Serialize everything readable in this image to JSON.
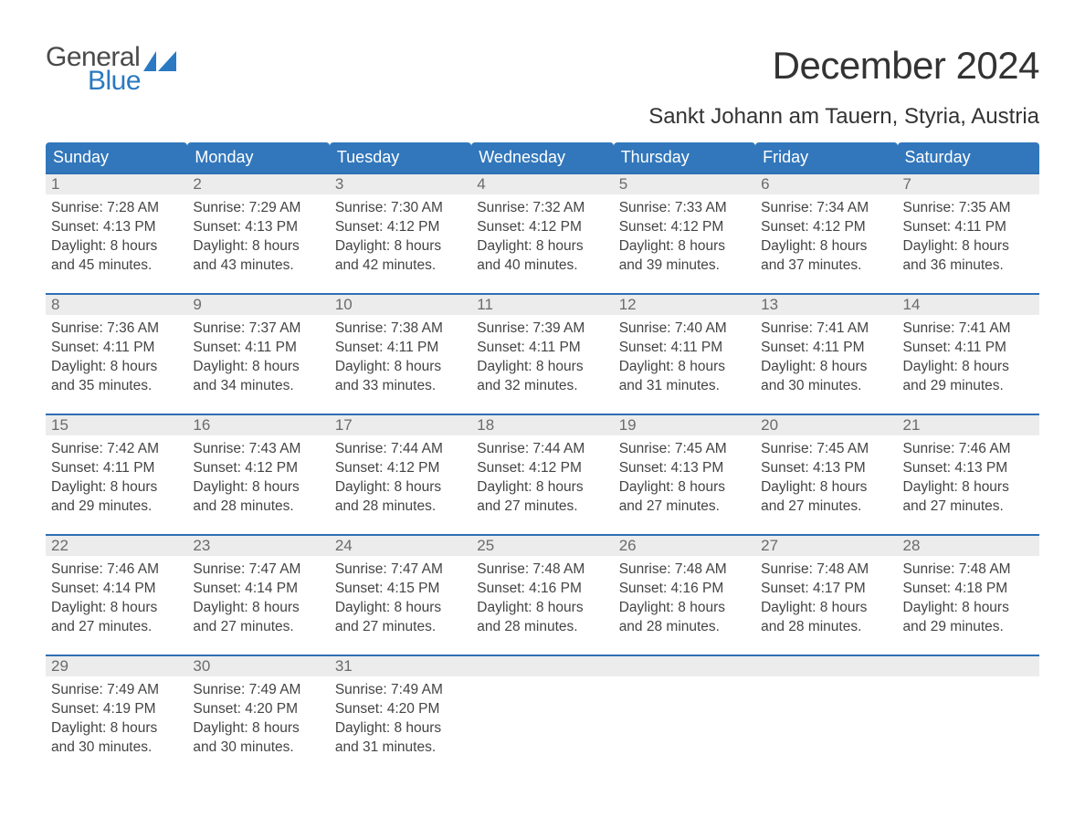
{
  "brand": {
    "word1": "General",
    "word2": "Blue",
    "icon_color": "#2b79c2"
  },
  "header": {
    "title": "December 2024",
    "location": "Sankt Johann am Tauern, Styria, Austria"
  },
  "colors": {
    "header_blue": "#3277bb",
    "row_accent": "#2f6fb3",
    "daynum_bg": "#ececec",
    "text_dark": "#3b3b3b",
    "brand_blue": "#2b79c2",
    "background": "#ffffff"
  },
  "weekdays": [
    "Sunday",
    "Monday",
    "Tuesday",
    "Wednesday",
    "Thursday",
    "Friday",
    "Saturday"
  ],
  "labels": {
    "sunrise": "Sunrise:",
    "sunset": "Sunset:",
    "daylight": "Daylight:"
  },
  "days": [
    {
      "n": "1",
      "sunrise": "7:28 AM",
      "sunset": "4:13 PM",
      "dl1": "8 hours",
      "dl2": "and 45 minutes."
    },
    {
      "n": "2",
      "sunrise": "7:29 AM",
      "sunset": "4:13 PM",
      "dl1": "8 hours",
      "dl2": "and 43 minutes."
    },
    {
      "n": "3",
      "sunrise": "7:30 AM",
      "sunset": "4:12 PM",
      "dl1": "8 hours",
      "dl2": "and 42 minutes."
    },
    {
      "n": "4",
      "sunrise": "7:32 AM",
      "sunset": "4:12 PM",
      "dl1": "8 hours",
      "dl2": "and 40 minutes."
    },
    {
      "n": "5",
      "sunrise": "7:33 AM",
      "sunset": "4:12 PM",
      "dl1": "8 hours",
      "dl2": "and 39 minutes."
    },
    {
      "n": "6",
      "sunrise": "7:34 AM",
      "sunset": "4:12 PM",
      "dl1": "8 hours",
      "dl2": "and 37 minutes."
    },
    {
      "n": "7",
      "sunrise": "7:35 AM",
      "sunset": "4:11 PM",
      "dl1": "8 hours",
      "dl2": "and 36 minutes."
    },
    {
      "n": "8",
      "sunrise": "7:36 AM",
      "sunset": "4:11 PM",
      "dl1": "8 hours",
      "dl2": "and 35 minutes."
    },
    {
      "n": "9",
      "sunrise": "7:37 AM",
      "sunset": "4:11 PM",
      "dl1": "8 hours",
      "dl2": "and 34 minutes."
    },
    {
      "n": "10",
      "sunrise": "7:38 AM",
      "sunset": "4:11 PM",
      "dl1": "8 hours",
      "dl2": "and 33 minutes."
    },
    {
      "n": "11",
      "sunrise": "7:39 AM",
      "sunset": "4:11 PM",
      "dl1": "8 hours",
      "dl2": "and 32 minutes."
    },
    {
      "n": "12",
      "sunrise": "7:40 AM",
      "sunset": "4:11 PM",
      "dl1": "8 hours",
      "dl2": "and 31 minutes."
    },
    {
      "n": "13",
      "sunrise": "7:41 AM",
      "sunset": "4:11 PM",
      "dl1": "8 hours",
      "dl2": "and 30 minutes."
    },
    {
      "n": "14",
      "sunrise": "7:41 AM",
      "sunset": "4:11 PM",
      "dl1": "8 hours",
      "dl2": "and 29 minutes."
    },
    {
      "n": "15",
      "sunrise": "7:42 AM",
      "sunset": "4:11 PM",
      "dl1": "8 hours",
      "dl2": "and 29 minutes."
    },
    {
      "n": "16",
      "sunrise": "7:43 AM",
      "sunset": "4:12 PM",
      "dl1": "8 hours",
      "dl2": "and 28 minutes."
    },
    {
      "n": "17",
      "sunrise": "7:44 AM",
      "sunset": "4:12 PM",
      "dl1": "8 hours",
      "dl2": "and 28 minutes."
    },
    {
      "n": "18",
      "sunrise": "7:44 AM",
      "sunset": "4:12 PM",
      "dl1": "8 hours",
      "dl2": "and 27 minutes."
    },
    {
      "n": "19",
      "sunrise": "7:45 AM",
      "sunset": "4:13 PM",
      "dl1": "8 hours",
      "dl2": "and 27 minutes."
    },
    {
      "n": "20",
      "sunrise": "7:45 AM",
      "sunset": "4:13 PM",
      "dl1": "8 hours",
      "dl2": "and 27 minutes."
    },
    {
      "n": "21",
      "sunrise": "7:46 AM",
      "sunset": "4:13 PM",
      "dl1": "8 hours",
      "dl2": "and 27 minutes."
    },
    {
      "n": "22",
      "sunrise": "7:46 AM",
      "sunset": "4:14 PM",
      "dl1": "8 hours",
      "dl2": "and 27 minutes."
    },
    {
      "n": "23",
      "sunrise": "7:47 AM",
      "sunset": "4:14 PM",
      "dl1": "8 hours",
      "dl2": "and 27 minutes."
    },
    {
      "n": "24",
      "sunrise": "7:47 AM",
      "sunset": "4:15 PM",
      "dl1": "8 hours",
      "dl2": "and 27 minutes."
    },
    {
      "n": "25",
      "sunrise": "7:48 AM",
      "sunset": "4:16 PM",
      "dl1": "8 hours",
      "dl2": "and 28 minutes."
    },
    {
      "n": "26",
      "sunrise": "7:48 AM",
      "sunset": "4:16 PM",
      "dl1": "8 hours",
      "dl2": "and 28 minutes."
    },
    {
      "n": "27",
      "sunrise": "7:48 AM",
      "sunset": "4:17 PM",
      "dl1": "8 hours",
      "dl2": "and 28 minutes."
    },
    {
      "n": "28",
      "sunrise": "7:48 AM",
      "sunset": "4:18 PM",
      "dl1": "8 hours",
      "dl2": "and 29 minutes."
    },
    {
      "n": "29",
      "sunrise": "7:49 AM",
      "sunset": "4:19 PM",
      "dl1": "8 hours",
      "dl2": "and 30 minutes."
    },
    {
      "n": "30",
      "sunrise": "7:49 AM",
      "sunset": "4:20 PM",
      "dl1": "8 hours",
      "dl2": "and 30 minutes."
    },
    {
      "n": "31",
      "sunrise": "7:49 AM",
      "sunset": "4:20 PM",
      "dl1": "8 hours",
      "dl2": "and 31 minutes."
    }
  ],
  "layout": {
    "first_weekday_index": 0,
    "weeks": 5,
    "columns": 7
  }
}
